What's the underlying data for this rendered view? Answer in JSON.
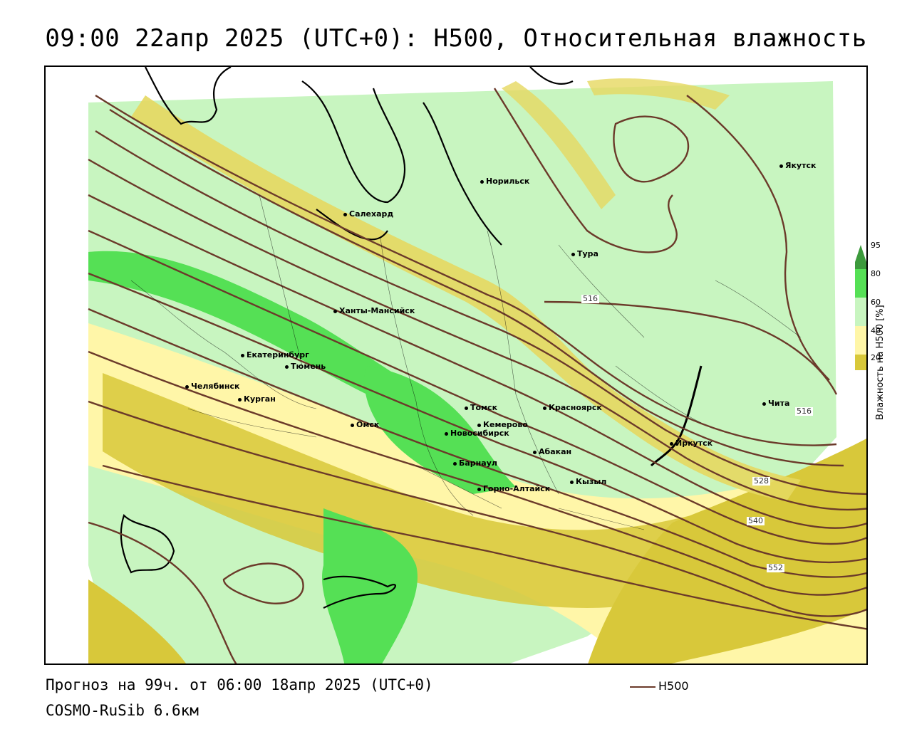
{
  "title": "09:00 22апр 2025 (UTC+0): H500, Относительная влажность",
  "footer": {
    "forecast": "Прогноз на 99ч. от 06:00 18апр 2025 (UTC+0)",
    "model": "COSMO-RuSib 6.6км",
    "key_label": "H500"
  },
  "legend": {
    "title": "Влажность на H500 [%]",
    "ticks": [
      "95",
      "80",
      "60",
      "40",
      "20"
    ],
    "colors": [
      "#3c9a3c",
      "#55e055",
      "#c8f5c0",
      "#ffffff",
      "#fff6a8",
      "#d8c83a"
    ]
  },
  "contour_labels": [
    "516",
    "516",
    "528",
    "540",
    "552"
  ],
  "cities": [
    {
      "name": "Норильск"
    },
    {
      "name": "Якутск"
    },
    {
      "name": "Салехард"
    },
    {
      "name": "Тура"
    },
    {
      "name": "Ханты-Мансийск"
    },
    {
      "name": "Екатеринбург"
    },
    {
      "name": "Тюмень"
    },
    {
      "name": "Челябинск"
    },
    {
      "name": "Курган"
    },
    {
      "name": "Омск"
    },
    {
      "name": "Новосибирск"
    },
    {
      "name": "Томск"
    },
    {
      "name": "Кемерово"
    },
    {
      "name": "Красноярск"
    },
    {
      "name": "Абакан"
    },
    {
      "name": "Барнаул"
    },
    {
      "name": "Кызыл"
    },
    {
      "name": "Горно-Алтайск"
    },
    {
      "name": "Иркутск"
    },
    {
      "name": "Чита"
    }
  ]
}
